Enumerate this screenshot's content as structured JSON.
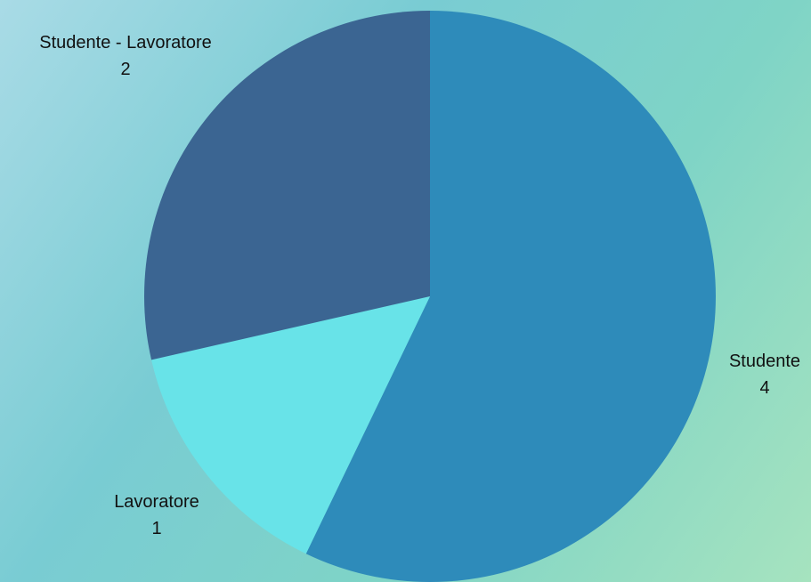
{
  "chart_data": {
    "type": "pie",
    "categories": [
      "Studente",
      "Lavoratore",
      "Studente - Lavoratore"
    ],
    "values": [
      4,
      1,
      2
    ],
    "colors": [
      "#2e8bba",
      "#68e3e8",
      "#3b6592"
    ],
    "start_angle": "top",
    "direction": "clockwise",
    "legend": "none",
    "labels": [
      {
        "name": "Studente",
        "value": "4"
      },
      {
        "name": "Lavoratore",
        "value": "1"
      },
      {
        "name": "Studente - Lavoratore",
        "value": "2"
      }
    ]
  }
}
